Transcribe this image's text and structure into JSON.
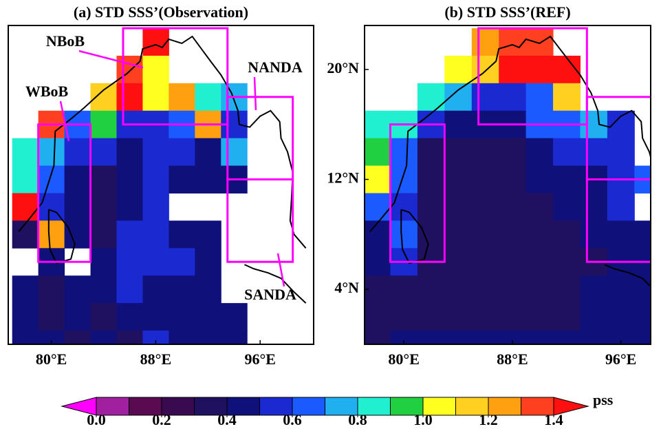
{
  "panels": [
    {
      "title": "(a) STD SSS’(Observation)",
      "lon_range": [
        76.7,
        100.1
      ],
      "lat_range": [
        0,
        23.2
      ],
      "lon": [
        78,
        80,
        82,
        84,
        86,
        88,
        90,
        92,
        94,
        96,
        98
      ],
      "lat": [
        22,
        20,
        18,
        16,
        14,
        12,
        10,
        8,
        6,
        4,
        2,
        0
      ],
      "values": [
        [
          null,
          null,
          null,
          null,
          null,
          1.4,
          null,
          null,
          null,
          null,
          null
        ],
        [
          null,
          null,
          null,
          null,
          1.3,
          1.0,
          null,
          null,
          null,
          null,
          null
        ],
        [
          null,
          null,
          null,
          1.1,
          1.4,
          1.0,
          1.2,
          0.85,
          0.7,
          null,
          null
        ],
        [
          null,
          1.3,
          0.6,
          0.9,
          0.55,
          0.5,
          0.6,
          1.2,
          0.5,
          null,
          null
        ],
        [
          0.85,
          0.7,
          0.5,
          0.5,
          0.4,
          0.5,
          0.55,
          0.45,
          0.75,
          null,
          null
        ],
        [
          0.8,
          0.6,
          0.4,
          0.3,
          0.45,
          0.5,
          0.45,
          0.4,
          0.45,
          null,
          null
        ],
        [
          1.4,
          0.55,
          0.4,
          0.35,
          0.45,
          0.5,
          null,
          null,
          null,
          null,
          null
        ],
        [
          0.35,
          1.2,
          0.4,
          0.35,
          0.55,
          0.5,
          0.45,
          0.4,
          null,
          null,
          null
        ],
        [
          null,
          0.4,
          null,
          0.45,
          0.5,
          0.55,
          0.5,
          0.45,
          null,
          null,
          null
        ],
        [
          0.4,
          0.35,
          0.45,
          0.4,
          0.5,
          0.45,
          0.45,
          0.45,
          null,
          null,
          null
        ],
        [
          0.4,
          0.35,
          0.4,
          0.35,
          0.45,
          0.4,
          0.45,
          0.4,
          0.45,
          null,
          null
        ],
        [
          0.4,
          0.4,
          0.35,
          0.4,
          0.35,
          0.55,
          0.4,
          0.45,
          0.45,
          null,
          null
        ]
      ],
      "lon_ticks": [
        {
          "value": 80,
          "label": "80°E"
        },
        {
          "value": 88,
          "label": "88°E"
        },
        {
          "value": 96,
          "label": "96°E"
        }
      ],
      "regions": [
        {
          "name": "NBoB",
          "lon": [
            85.5,
            93.5
          ],
          "lat": [
            16,
            23
          ]
        },
        {
          "name": "WBoB",
          "lon": [
            79,
            83
          ],
          "lat": [
            6,
            16
          ]
        },
        {
          "name": "NANDA",
          "lon": [
            93.5,
            98.5
          ],
          "lat": [
            12,
            18
          ]
        },
        {
          "name": "SANDA",
          "lon": [
            93.5,
            98.5
          ],
          "lat": [
            6,
            12
          ]
        }
      ]
    },
    {
      "title": "(b) STD SSS’(REF)",
      "lon_range": [
        77.1,
        98.2
      ],
      "lat_range": [
        0,
        23.2
      ],
      "lon": [
        78,
        80,
        82,
        84,
        86,
        88,
        90,
        92,
        94,
        96,
        98
      ],
      "lat": [
        22,
        20,
        18,
        16,
        14,
        12,
        10,
        8,
        6,
        4,
        2,
        0
      ],
      "values": [
        [
          null,
          null,
          null,
          null,
          1.2,
          1.3,
          1.3,
          null,
          null,
          null,
          null
        ],
        [
          null,
          null,
          null,
          1.0,
          1.1,
          1.4,
          1.4,
          1.4,
          null,
          null,
          null
        ],
        [
          null,
          null,
          0.85,
          0.7,
          0.55,
          0.55,
          0.65,
          1.1,
          null,
          null,
          null
        ],
        [
          0.85,
          0.8,
          0.5,
          0.45,
          0.45,
          0.45,
          0.6,
          0.6,
          0.75,
          0.55,
          null
        ],
        [
          0.9,
          0.6,
          0.3,
          0.3,
          0.3,
          0.35,
          0.45,
          0.5,
          0.5,
          0.55,
          null
        ],
        [
          1.0,
          0.6,
          0.3,
          0.3,
          0.3,
          0.35,
          0.4,
          0.4,
          0.45,
          0.55,
          0.6
        ],
        [
          0.6,
          0.5,
          0.3,
          0.3,
          0.3,
          0.35,
          0.35,
          0.4,
          0.45,
          0.5,
          null
        ],
        [
          0.4,
          0.6,
          0.3,
          0.3,
          0.3,
          0.3,
          0.35,
          0.35,
          0.4,
          0.45,
          0.45
        ],
        [
          0.45,
          0.5,
          0.35,
          0.3,
          0.3,
          0.3,
          0.35,
          0.35,
          0.35,
          0.45,
          0.45
        ],
        [
          0.3,
          0.3,
          0.3,
          0.3,
          0.3,
          0.35,
          0.35,
          0.35,
          0.4,
          0.4,
          0.4
        ],
        [
          0.3,
          0.3,
          0.3,
          0.3,
          0.35,
          0.35,
          0.35,
          0.35,
          0.4,
          0.4,
          0.45
        ],
        [
          0.35,
          0.4,
          0.4,
          0.4,
          0.4,
          0.4,
          0.4,
          0.4,
          0.4,
          0.4,
          0.45
        ]
      ],
      "lon_ticks": [
        {
          "value": 80,
          "label": "80°E"
        },
        {
          "value": 88,
          "label": "88°E"
        },
        {
          "value": 96,
          "label": "96°E"
        }
      ],
      "regions": [
        {
          "lon": [
            85.5,
            93.5
          ],
          "lat": [
            16,
            23
          ]
        },
        {
          "lon": [
            79,
            83
          ],
          "lat": [
            6,
            16
          ]
        },
        {
          "lon": [
            93.5,
            98.5
          ],
          "lat": [
            12,
            18
          ]
        },
        {
          "lon": [
            93.5,
            98.5
          ],
          "lat": [
            6,
            12
          ]
        }
      ]
    }
  ],
  "lat_ticks": [
    {
      "value": 20,
      "label": "20°N"
    },
    {
      "value": 12,
      "label": "12°N"
    },
    {
      "value": 4,
      "label": "4°N"
    }
  ],
  "colorbar": {
    "levels": [
      0,
      0.1,
      0.2,
      0.3,
      0.4,
      0.5,
      0.6,
      0.7,
      0.8,
      0.9,
      1.0,
      1.1,
      1.2,
      1.3,
      1.4
    ],
    "colors": [
      "#ff00ff",
      "#a020a0",
      "#5a0a50",
      "#3a0a50",
      "#201060",
      "#10107a",
      "#1a2ad0",
      "#1a5aff",
      "#20b0f0",
      "#20f0d0",
      "#20d040",
      "#ffff20",
      "#ffd020",
      "#ffa010",
      "#ff4020",
      "#ff1010"
    ],
    "ticks": [
      {
        "value": 0,
        "label": "0.0"
      },
      0.2,
      0.4,
      0.6,
      0.8,
      {
        "value": 1.0,
        "label": "1.0"
      },
      1.2,
      1.4
    ],
    "unit": "pss"
  }
}
